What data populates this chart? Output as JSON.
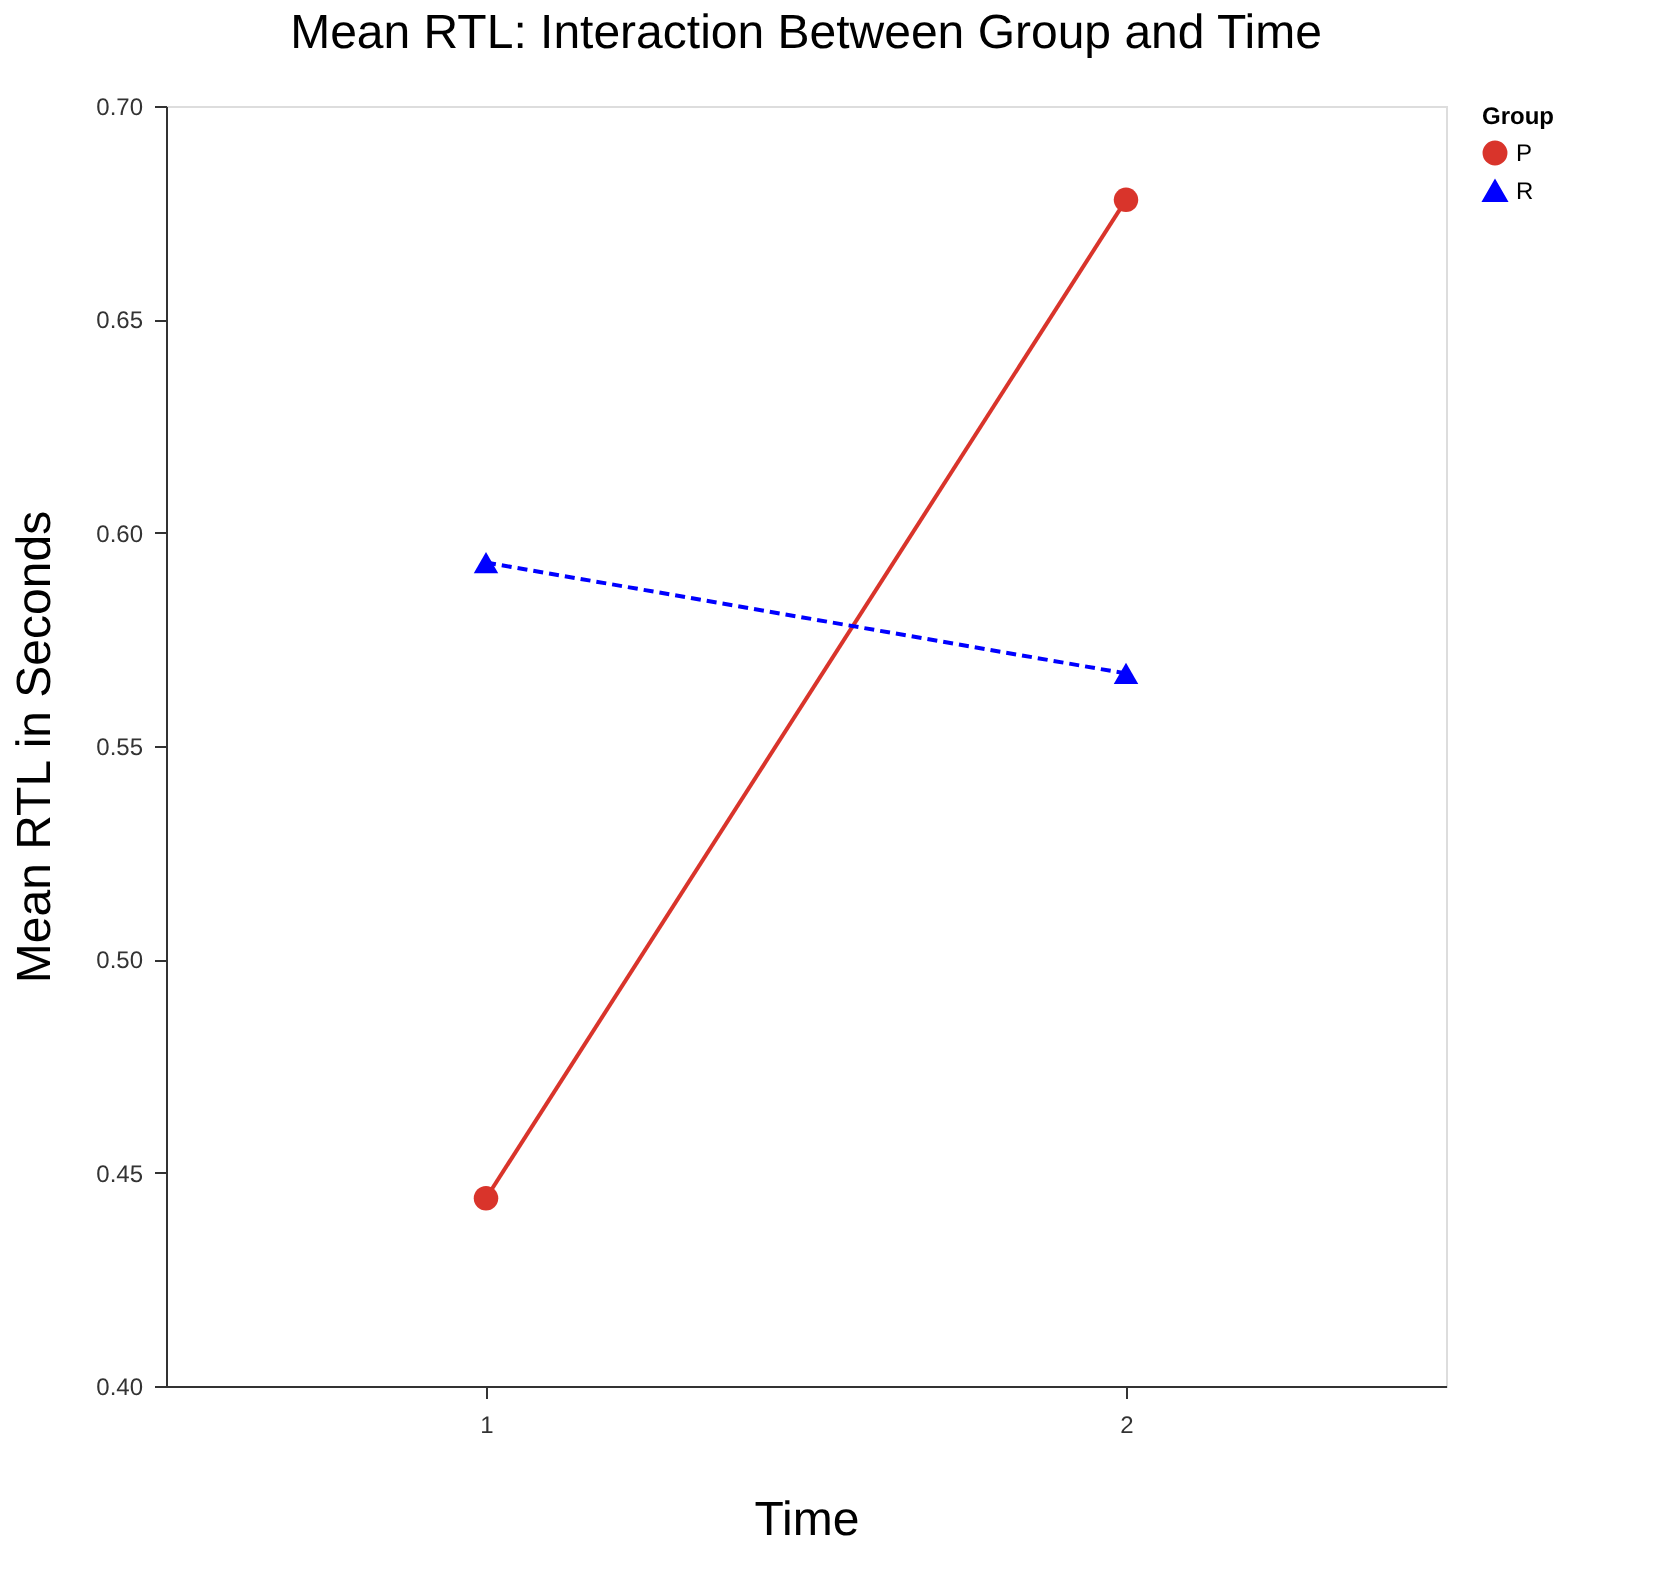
{
  "chart_data": {
    "type": "line",
    "title": "Mean RTL: Interaction Between Group and Time",
    "xlabel": "Time",
    "ylabel": "Mean RTL in Seconds",
    "legend_title": "Group",
    "x": [
      1,
      2
    ],
    "series": [
      {
        "name": "P",
        "color": "#d9342b",
        "values": [
          0.444,
          0.678
        ],
        "marker": "circle",
        "line_style": "solid"
      },
      {
        "name": "R",
        "color": "#0000ff",
        "values": [
          0.593,
          0.567
        ],
        "marker": "triangle",
        "line_style": "dashed"
      }
    ],
    "xlim": [
      0.5,
      2.5
    ],
    "xticks": [
      1,
      2
    ],
    "ylim": [
      0.4,
      0.7
    ],
    "yticks": [
      {
        "value": 0.4,
        "label": "0.40"
      },
      0.45,
      {
        "value": 0.5,
        "label": "0.50"
      },
      0.55,
      {
        "value": 0.6,
        "label": "0.60"
      },
      0.65,
      {
        "value": 0.7,
        "label": "0.70"
      }
    ],
    "grid": false,
    "legend": "right"
  }
}
